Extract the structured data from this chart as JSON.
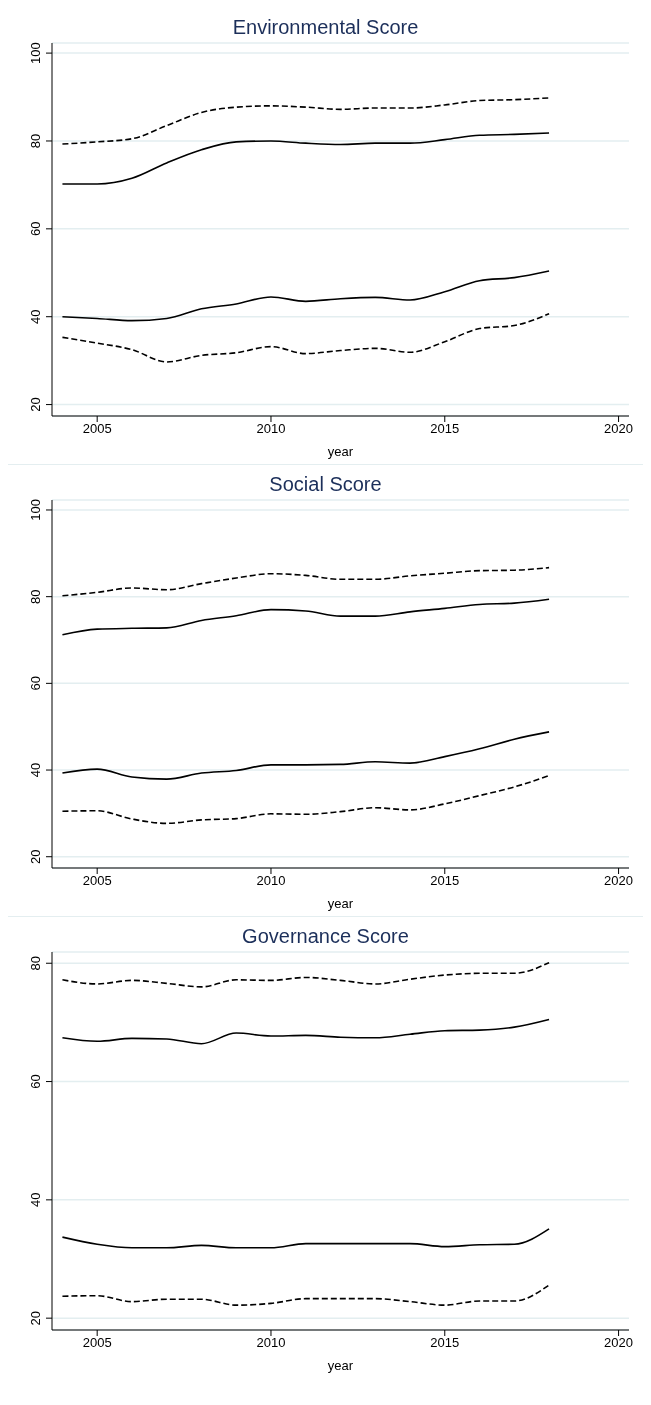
{
  "chart_data": [
    {
      "type": "line",
      "title": "Environmental Score",
      "xlabel": "year",
      "x": [
        2004,
        2005,
        2006,
        2007,
        2008,
        2009,
        2010,
        2011,
        2012,
        2013,
        2014,
        2015,
        2016,
        2017,
        2018
      ],
      "xlim": [
        2003.7,
        2020.3
      ],
      "xticks": [
        2005,
        2010,
        2015,
        2020
      ],
      "ylim": [
        17.4,
        102.3
      ],
      "yticks": [
        20,
        40,
        60,
        80,
        100
      ],
      "grid": "y",
      "series": [
        {
          "color": "#000000",
          "line_style": "dashed",
          "values": [
            79.3,
            79.8,
            80.5,
            83.5,
            86.5,
            87.7,
            88,
            87.7,
            87.2,
            87.5,
            87.5,
            88.2,
            89.2,
            89.4,
            89.8
          ]
        },
        {
          "color": "#000000",
          "line_style": "solid",
          "values": [
            70.2,
            70.2,
            71.5,
            75,
            78,
            79.8,
            80,
            79.5,
            79.2,
            79.5,
            79.5,
            80.3,
            81.3,
            81.5,
            81.8
          ]
        },
        {
          "color": "#000000",
          "line_style": "solid",
          "values": [
            40,
            39.6,
            39.1,
            39.6,
            41.8,
            42.9,
            44.5,
            43.5,
            44.1,
            44.4,
            43.8,
            45.7,
            48.2,
            48.9,
            50.4
          ]
        },
        {
          "color": "#000000",
          "line_style": "dashed",
          "values": [
            35.3,
            34,
            32.5,
            29.7,
            31.2,
            31.8,
            33.2,
            31.6,
            32.3,
            32.8,
            31.9,
            34.3,
            37.3,
            38,
            40.7
          ]
        }
      ]
    },
    {
      "type": "line",
      "title": "Social Score",
      "xlabel": "year",
      "x": [
        2004,
        2005,
        2006,
        2007,
        2008,
        2009,
        2010,
        2011,
        2012,
        2013,
        2014,
        2015,
        2016,
        2017,
        2018
      ],
      "xlim": [
        2003.7,
        2020.3
      ],
      "xticks": [
        2005,
        2010,
        2015,
        2020
      ],
      "ylim": [
        17.4,
        102.3
      ],
      "yticks": [
        20,
        40,
        60,
        80,
        100
      ],
      "grid": "y",
      "series": [
        {
          "color": "#000000",
          "line_style": "dashed",
          "values": [
            80.2,
            81,
            82,
            81.6,
            83,
            84.3,
            85.3,
            84.9,
            84,
            84,
            84.8,
            85.4,
            86,
            86.1,
            86.7
          ]
        },
        {
          "color": "#000000",
          "line_style": "solid",
          "values": [
            71.2,
            72.5,
            72.7,
            72.8,
            74.5,
            75.6,
            77,
            76.7,
            75.5,
            75.5,
            76.5,
            77.3,
            78.2,
            78.5,
            79.4
          ]
        },
        {
          "color": "#000000",
          "line_style": "solid",
          "values": [
            39.3,
            40.2,
            38.4,
            37.9,
            39.3,
            39.9,
            41.2,
            41.2,
            41.3,
            41.9,
            41.6,
            43.1,
            44.9,
            47.1,
            48.8
          ]
        },
        {
          "color": "#000000",
          "line_style": "dashed",
          "values": [
            30.5,
            30.6,
            28.7,
            27.7,
            28.5,
            28.8,
            29.9,
            29.8,
            30.4,
            31.3,
            30.8,
            32.2,
            34.1,
            36.1,
            38.7
          ]
        }
      ]
    },
    {
      "type": "line",
      "title": "Governance Score",
      "xlabel": "year",
      "x": [
        2004,
        2005,
        2006,
        2007,
        2008,
        2009,
        2010,
        2011,
        2012,
        2013,
        2014,
        2015,
        2016,
        2017,
        2018
      ],
      "xlim": [
        2003.7,
        2020.3
      ],
      "xticks": [
        2005,
        2010,
        2015,
        2020
      ],
      "ylim": [
        18,
        81.9
      ],
      "yticks": [
        20,
        40,
        60,
        80
      ],
      "grid": "y",
      "series": [
        {
          "color": "#000000",
          "line_style": "dashed",
          "values": [
            77.2,
            76.5,
            77.1,
            76.6,
            76,
            77.2,
            77.1,
            77.6,
            77.1,
            76.5,
            77.3,
            78,
            78.3,
            78.3,
            80.1
          ]
        },
        {
          "color": "#000000",
          "line_style": "solid",
          "values": [
            67.4,
            66.8,
            67.3,
            67.2,
            66.4,
            68.2,
            67.7,
            67.8,
            67.5,
            67.4,
            68,
            68.6,
            68.7,
            69.2,
            70.5
          ]
        },
        {
          "color": "#000000",
          "line_style": "solid",
          "values": [
            33.7,
            32.5,
            31.9,
            31.9,
            32.3,
            31.9,
            31.9,
            32.6,
            32.6,
            32.6,
            32.6,
            32.1,
            32.4,
            32.5,
            35.1
          ]
        },
        {
          "color": "#000000",
          "line_style": "dashed",
          "values": [
            23.7,
            23.8,
            22.8,
            23.2,
            23.2,
            22.2,
            22.5,
            23.3,
            23.3,
            23.3,
            22.8,
            22.2,
            22.9,
            22.9,
            25.6
          ]
        }
      ]
    }
  ]
}
